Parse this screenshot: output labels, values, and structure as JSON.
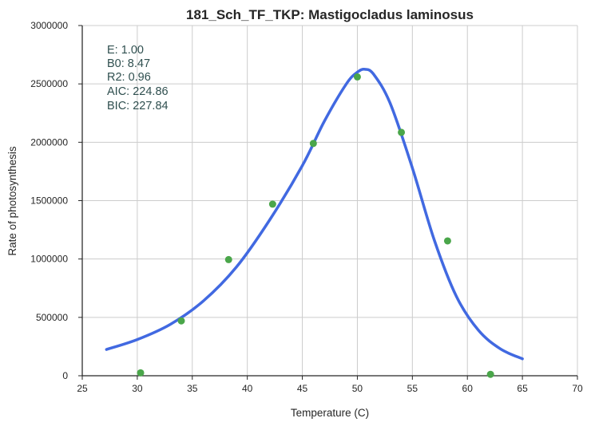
{
  "chart_data": {
    "type": "scatter",
    "title": "181_Sch_TF_TKP: Mastigocladus laminosus",
    "xlabel": "Temperature (C)",
    "ylabel": "Rate of photosynthesis",
    "xlim": [
      25,
      70
    ],
    "ylim": [
      0,
      3000000
    ],
    "x_ticks": [
      "25",
      "30",
      "35",
      "40",
      "45",
      "50",
      "55",
      "60",
      "65",
      "70"
    ],
    "y_ticks": [
      "0",
      "500000",
      "1000000",
      "1500000",
      "2000000",
      "2500000",
      "3000000"
    ],
    "grid": true,
    "legend": "none",
    "stats": [
      "E:  1.00",
      "B0:  8.47",
      "R2:  0.96",
      "AIC: 224.86",
      "BIC: 227.84"
    ],
    "series": [
      {
        "type": "scatter",
        "color": "#4aa64a",
        "points": [
          {
            "x": 30.3,
            "y": 25000
          },
          {
            "x": 34.0,
            "y": 470000
          },
          {
            "x": 38.3,
            "y": 995000
          },
          {
            "x": 42.3,
            "y": 1470000
          },
          {
            "x": 46.0,
            "y": 1990000
          },
          {
            "x": 50.0,
            "y": 2560000
          },
          {
            "x": 54.0,
            "y": 2085000
          },
          {
            "x": 58.2,
            "y": 1155000
          },
          {
            "x": 62.1,
            "y": 12000
          }
        ]
      },
      {
        "type": "line",
        "color": "#4169e1",
        "points": [
          {
            "x": 27.2,
            "y": 225000
          },
          {
            "x": 30,
            "y": 310000
          },
          {
            "x": 33,
            "y": 440000
          },
          {
            "x": 36,
            "y": 640000
          },
          {
            "x": 39,
            "y": 930000
          },
          {
            "x": 42,
            "y": 1330000
          },
          {
            "x": 45,
            "y": 1800000
          },
          {
            "x": 47,
            "y": 2180000
          },
          {
            "x": 49,
            "y": 2500000
          },
          {
            "x": 50,
            "y": 2600000
          },
          {
            "x": 50.7,
            "y": 2625000
          },
          {
            "x": 51.5,
            "y": 2580000
          },
          {
            "x": 53,
            "y": 2330000
          },
          {
            "x": 55,
            "y": 1780000
          },
          {
            "x": 57,
            "y": 1160000
          },
          {
            "x": 59,
            "y": 680000
          },
          {
            "x": 61,
            "y": 390000
          },
          {
            "x": 63,
            "y": 230000
          },
          {
            "x": 65,
            "y": 145000
          }
        ]
      }
    ]
  }
}
